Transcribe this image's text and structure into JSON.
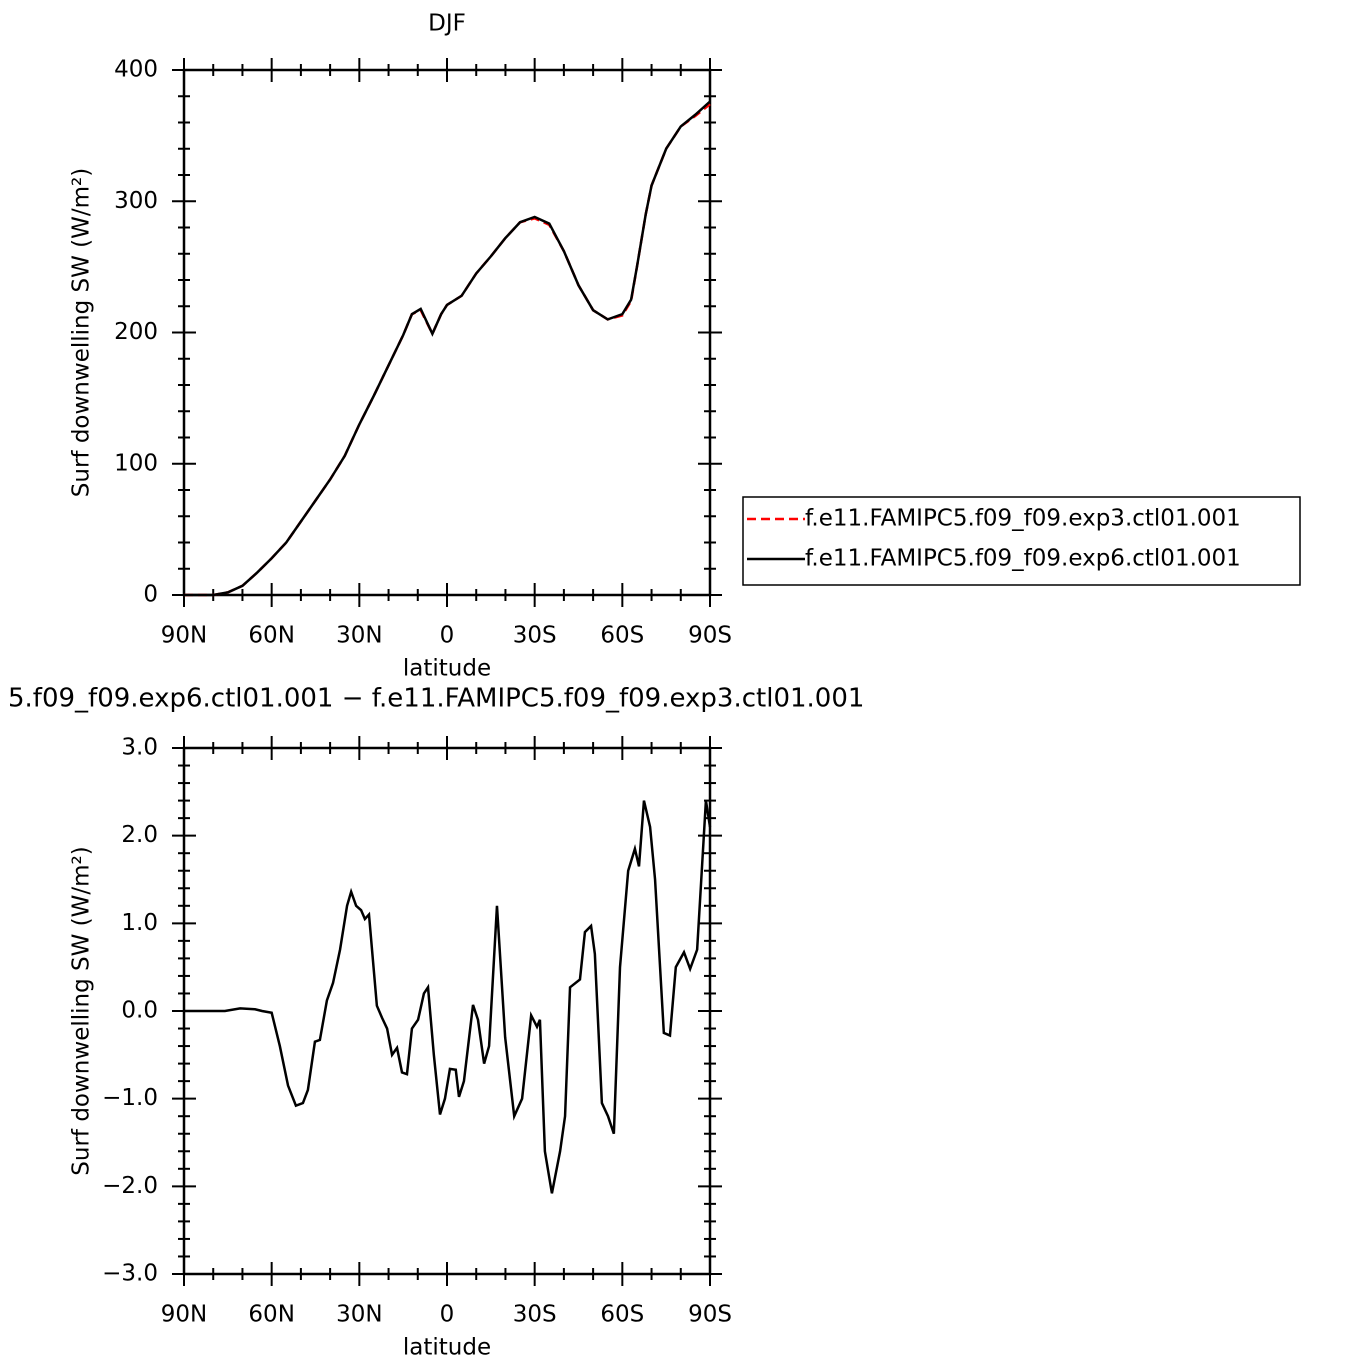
{
  "chart_data": [
    {
      "type": "line",
      "title": "DJF",
      "xlabel": "latitude",
      "ylabel": "Surf downwelling SW (W/m²)",
      "xlim": [
        90,
        -90
      ],
      "ylim": [
        0,
        400
      ],
      "xticks": [
        {
          "value": 90,
          "label": "90N"
        },
        {
          "value": 60,
          "label": "60N"
        },
        {
          "value": 30,
          "label": "30N"
        },
        0,
        {
          "value": -30,
          "label": "30S"
        },
        {
          "value": -60,
          "label": "60S"
        },
        {
          "value": -90,
          "label": "90S"
        }
      ],
      "yticks": [
        0,
        100,
        200,
        300,
        400
      ],
      "legend": "right",
      "x": [
        90,
        85,
        80,
        75,
        70,
        65,
        60,
        55,
        50,
        45,
        40,
        35,
        30,
        25,
        20,
        15,
        12,
        9,
        5,
        2,
        0,
        -5,
        -10,
        -15,
        -20,
        -25,
        -30,
        -35,
        -40,
        -45,
        -50,
        -55,
        -60,
        -63,
        -65,
        -68,
        -70,
        -75,
        -80,
        -85,
        -90
      ],
      "series": [
        {
          "name": "f.e11.FAMIPC5.f09_f09.exp3.ctl01.001",
          "color": "#ff0000",
          "dash": "dashed",
          "values": [
            0,
            0,
            0,
            2,
            7,
            17,
            28,
            40,
            56,
            72,
            88,
            106,
            130,
            152,
            175,
            198,
            214,
            217,
            199,
            214,
            221,
            228,
            245,
            258,
            272,
            284,
            287,
            282,
            262,
            236,
            217,
            210,
            213,
            224,
            250,
            290,
            312,
            340,
            357,
            365,
            374
          ]
        },
        {
          "name": "f.e11.FAMIPC5.f09_f09.exp6.ctl01.001",
          "color": "#000000",
          "dash": "solid",
          "values": [
            0,
            0,
            0,
            2,
            7,
            17,
            28,
            40,
            56,
            72,
            88,
            106,
            130,
            152,
            175,
            198,
            214,
            218,
            199,
            214,
            221,
            228,
            245,
            258,
            272,
            284,
            288,
            283,
            262,
            236,
            217,
            210,
            214,
            225,
            250,
            290,
            312,
            340,
            357,
            366,
            376
          ]
        }
      ]
    },
    {
      "type": "line",
      "title": "5.f09_f09.exp6.ctl01.001 − f.e11.FAMIPC5.f09_f09.exp3.ctl01.001",
      "xlabel": "latitude",
      "ylabel": "Surf downwelling SW (W/m²)",
      "xlim": [
        90,
        -90
      ],
      "ylim": [
        -3,
        3
      ],
      "xticks": [
        {
          "value": 90,
          "label": "90N"
        },
        {
          "value": 60,
          "label": "60N"
        },
        {
          "value": 30,
          "label": "30N"
        },
        0,
        {
          "value": -30,
          "label": "30S"
        },
        {
          "value": -60,
          "label": "60S"
        },
        {
          "value": -90,
          "label": "90S"
        }
      ],
      "yticks": [
        {
          "value": -3,
          "label": "−3.0"
        },
        {
          "value": -2,
          "label": "−2.0"
        },
        {
          "value": -1,
          "label": "−1.0"
        },
        {
          "value": 0,
          "label": "0.0"
        },
        {
          "value": 1,
          "label": "1.0"
        },
        {
          "value": 2,
          "label": "2.0"
        },
        {
          "value": 3,
          "label": "3.0"
        }
      ],
      "x": [
        90,
        76,
        70.8,
        65.7,
        63.3,
        60,
        57.2,
        54.4,
        51.7,
        49.3,
        47.6,
        45.2,
        43.5,
        41.1,
        39,
        36.6,
        34.2,
        32.8,
        31.1,
        29.4,
        28.1,
        26.7,
        24,
        22.2,
        20.5,
        18.8,
        17.1,
        15.4,
        13.7,
        12,
        9.9,
        7.9,
        6.5,
        4.5,
        2.4,
        0.7,
        -1,
        -3,
        -4.1,
        -5.8,
        -8.9,
        -10.6,
        -12.7,
        -14.4,
        -17.1,
        -19.9,
        -23,
        -25.7,
        -28.8,
        -30.8,
        -31.8,
        -33.5,
        -35.9,
        -38.7,
        -40.4,
        -42.1,
        -45.5,
        -47.2,
        -49.3,
        -50.6,
        -53,
        -55.1,
        -57.1,
        -59.2,
        -62,
        -64.3,
        -65.7,
        -67.4,
        -69.5,
        -71.2,
        -74.2,
        -76.3,
        -78.3,
        -81.1,
        -83.2,
        -85.6,
        -88.6,
        -90
      ],
      "series": [
        {
          "color": "#000000",
          "dash": "solid",
          "values": [
            0,
            0,
            0.03,
            0.02,
            0,
            -0.02,
            -0.4,
            -0.85,
            -1.08,
            -1.05,
            -0.9,
            -0.35,
            -0.33,
            0.12,
            0.32,
            0.7,
            1.2,
            1.36,
            1.2,
            1.15,
            1.05,
            1.1,
            0.06,
            -0.08,
            -0.2,
            -0.5,
            -0.42,
            -0.7,
            -0.72,
            -0.2,
            -0.1,
            0.2,
            0.27,
            -0.5,
            -1.18,
            -1.0,
            -0.66,
            -0.67,
            -0.98,
            -0.8,
            0.07,
            -0.1,
            -0.6,
            -0.4,
            1.2,
            -0.3,
            -1.2,
            -1.0,
            -0.05,
            -0.18,
            -0.1,
            -1.6,
            -2.08,
            -1.6,
            -1.2,
            0.27,
            0.36,
            0.9,
            0.97,
            0.65,
            -1.05,
            -1.2,
            -1.4,
            0.5,
            1.6,
            1.85,
            1.65,
            2.4,
            2.1,
            1.5,
            -0.25,
            -0.28,
            0.5,
            0.67,
            0.48,
            0.7,
            2.4,
            2.1
          ]
        }
      ]
    }
  ]
}
